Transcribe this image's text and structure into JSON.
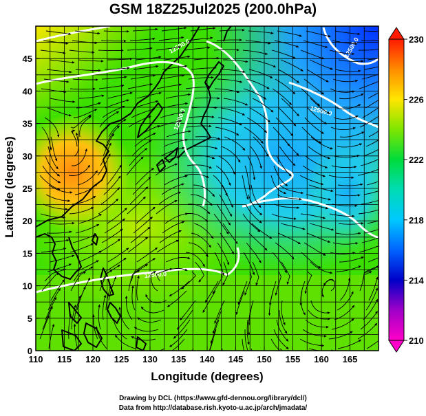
{
  "title": "GSM 18Z25Jul2025 (200.0hPa)",
  "axes": {
    "xlabel": "Longitude (degrees)",
    "ylabel": "Latitude  (degrees)",
    "x_ticks": [
      "110",
      "115",
      "120",
      "125",
      "130",
      "135",
      "140",
      "145",
      "150",
      "155",
      "160",
      "165"
    ],
    "y_ticks": [
      "0",
      "5",
      "10",
      "15",
      "20",
      "25",
      "30",
      "35",
      "40",
      "45"
    ]
  },
  "colorbar": {
    "labels": [
      "230",
      "226",
      "222",
      "218",
      "214",
      "210"
    ],
    "colors": [
      "#ff1a00",
      "#ff8c00",
      "#ffe600",
      "#7ee600",
      "#00dc3c",
      "#00dcb4",
      "#00c8ff",
      "#0064ff",
      "#0000c8",
      "#a000c8",
      "#ff00c8"
    ]
  },
  "contours": {
    "label": "12500.0"
  },
  "credits": {
    "line1": "Drawing by DCL (https://www.gfd-dennou.org/library/dcl/)",
    "line2": "Data from http://database.rish.kyoto-u.ac.jp/arch/jmadata/"
  }
}
